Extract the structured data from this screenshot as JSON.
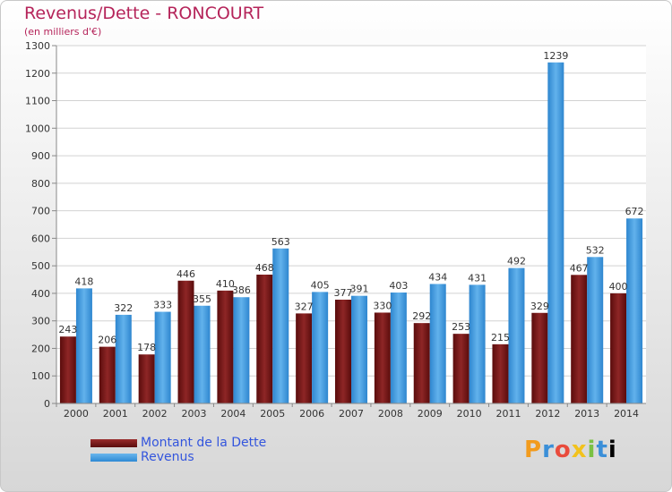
{
  "chart_data": {
    "type": "bar",
    "title": "Revenus/Dette - RONCOURT",
    "subtitle": "(en milliers d'€)",
    "categories": [
      "2000",
      "2001",
      "2002",
      "2003",
      "2004",
      "2005",
      "2006",
      "2007",
      "2008",
      "2009",
      "2010",
      "2011",
      "2012",
      "2013",
      "2014"
    ],
    "series": [
      {
        "name": "Montant de la Dette",
        "color": "#7a1a1a",
        "values": [
          243,
          206,
          178,
          446,
          410,
          468,
          327,
          377,
          330,
          292,
          253,
          215,
          329,
          467,
          400
        ]
      },
      {
        "name": "Revenus",
        "color": "#4aa3e6",
        "values": [
          418,
          322,
          333,
          355,
          386,
          563,
          405,
          391,
          403,
          434,
          431,
          492,
          1239,
          532,
          672
        ]
      }
    ],
    "ylim": [
      0,
      1300
    ],
    "yticks": [
      0,
      100,
      200,
      300,
      400,
      500,
      600,
      700,
      800,
      900,
      1000,
      1100,
      1200,
      1300
    ],
    "grid": true,
    "legend_position": "bottom-left"
  },
  "logo": {
    "letters": [
      "P",
      "r",
      "o",
      "x",
      "i",
      "t",
      "i"
    ]
  }
}
